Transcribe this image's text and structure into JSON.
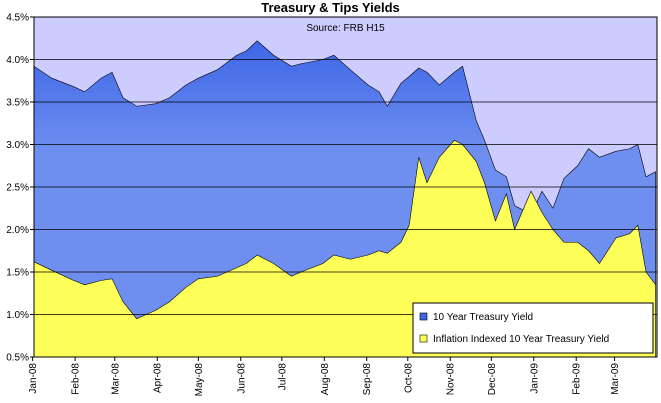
{
  "chart_data": {
    "type": "area",
    "title": "Treasury & Tips Yields",
    "annotation": "Source: FRB H15",
    "xlabel": "",
    "ylabel": "",
    "ylim": [
      0.5,
      4.5
    ],
    "y_ticks": [
      "0.5%",
      "1.0%",
      "1.5%",
      "2.0%",
      "2.5%",
      "3.0%",
      "3.5%",
      "4.0%",
      "4.5%"
    ],
    "x_ticks": [
      "Jan-08",
      "Feb-08",
      "Mar-08",
      "Apr-08",
      "May-08",
      "Jun-08",
      "Jul-08",
      "Aug-08",
      "Sep-08",
      "Oct-08",
      "Nov-08",
      "Dec-08",
      "Jan-09",
      "Feb-09",
      "Mar-09"
    ],
    "grid": "horizontal",
    "legend_position": "bottom-right",
    "colors": {
      "plot_background": "#ccccff",
      "treasury_fill": "#6e8ff0",
      "treasury_fill_dark": "#3e66e6",
      "tips_fill": "#ffff5a",
      "grid": "#000000"
    },
    "x": [
      "2008-01-02",
      "2008-01-15",
      "2008-01-31",
      "2008-02-08",
      "2008-02-20",
      "2008-02-28",
      "2008-03-07",
      "2008-03-17",
      "2008-03-31",
      "2008-04-10",
      "2008-04-22",
      "2008-05-01",
      "2008-05-15",
      "2008-05-29",
      "2008-06-05",
      "2008-06-13",
      "2008-06-25",
      "2008-07-08",
      "2008-07-15",
      "2008-07-31",
      "2008-08-08",
      "2008-08-20",
      "2008-09-02",
      "2008-09-10",
      "2008-09-16",
      "2008-09-26",
      "2008-10-02",
      "2008-10-09",
      "2008-10-15",
      "2008-10-24",
      "2008-11-04",
      "2008-11-10",
      "2008-11-20",
      "2008-11-26",
      "2008-12-04",
      "2008-12-12",
      "2008-12-18",
      "2008-12-30",
      "2009-01-07",
      "2009-01-15",
      "2009-01-23",
      "2009-02-02",
      "2009-02-10",
      "2009-02-18",
      "2009-03-02",
      "2009-03-12",
      "2009-03-18",
      "2009-03-24",
      "2009-03-31"
    ],
    "series": [
      {
        "name": "10 Year Treasury Yield",
        "values": [
          3.92,
          3.78,
          3.68,
          3.62,
          3.78,
          3.85,
          3.55,
          3.45,
          3.48,
          3.55,
          3.7,
          3.78,
          3.88,
          4.05,
          4.1,
          4.22,
          4.05,
          3.92,
          3.95,
          4.0,
          4.05,
          3.88,
          3.7,
          3.62,
          3.45,
          3.72,
          3.8,
          3.9,
          3.85,
          3.7,
          3.85,
          3.92,
          3.28,
          3.05,
          2.7,
          2.62,
          2.28,
          2.18,
          2.45,
          2.25,
          2.6,
          2.75,
          2.95,
          2.85,
          2.92,
          2.95,
          3.0,
          2.62,
          2.68
        ]
      },
      {
        "name": "Inflation Indexed 10 Year Treasury Yield",
        "values": [
          1.62,
          1.52,
          1.4,
          1.35,
          1.4,
          1.42,
          1.15,
          0.95,
          1.05,
          1.15,
          1.32,
          1.42,
          1.45,
          1.55,
          1.6,
          1.7,
          1.6,
          1.45,
          1.5,
          1.6,
          1.7,
          1.65,
          1.7,
          1.75,
          1.72,
          1.85,
          2.05,
          2.85,
          2.55,
          2.85,
          3.05,
          3.0,
          2.8,
          2.55,
          2.1,
          2.42,
          2.0,
          2.45,
          2.2,
          2.0,
          1.85,
          1.85,
          1.75,
          1.6,
          1.9,
          1.95,
          2.05,
          1.5,
          1.35
        ]
      }
    ]
  }
}
